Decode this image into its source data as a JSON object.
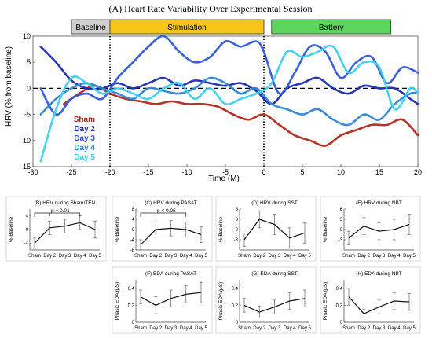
{
  "main": {
    "title": "(A) Heart Rate Variability Over Experimental Session",
    "xlabel": "Time (M)",
    "ylabel": "HRV (% from baseline)",
    "xlim": [
      -30,
      20
    ],
    "ylim": [
      -15,
      10
    ],
    "xticks": [
      -30,
      -25,
      -20,
      -15,
      -10,
      -5,
      0,
      5,
      10,
      15,
      20
    ],
    "yticks": [
      -15,
      -10,
      -5,
      0,
      5,
      10
    ],
    "phases": [
      {
        "label": "Baseline",
        "start": -25,
        "end": -20,
        "color": "#cfcfcf"
      },
      {
        "label": "Stimulation",
        "start": -20,
        "end": 0,
        "color": "#f5c518"
      },
      {
        "label": "Battery",
        "start": 1,
        "end": 16.5,
        "color": "#5cd65c"
      }
    ],
    "vlines": [
      -20,
      0
    ],
    "hline": 0,
    "legend_placement": "lower-left",
    "series": [
      {
        "name": "Sham",
        "color": "#b02a1a",
        "x": [
          -26,
          -24,
          -22,
          -20,
          -18,
          -16,
          -14,
          -12,
          -10,
          -8,
          -6,
          -4,
          -2,
          0,
          2,
          4,
          6,
          8,
          10,
          12,
          14,
          16,
          18,
          20
        ],
        "y": [
          -3,
          -1,
          0.5,
          -1,
          -2,
          -2.5,
          -3,
          -2.5,
          -3,
          -3,
          -3.5,
          -5,
          -6,
          -5,
          -7,
          -9,
          -10,
          -11,
          -9,
          -8,
          -7,
          -7,
          -6,
          -9
        ]
      },
      {
        "name": "Day 2",
        "color": "#1a2bb0",
        "x": [
          -29,
          -27,
          -25,
          -23,
          -21,
          -19,
          -17,
          -15,
          -13,
          -11,
          -9,
          -7,
          -5,
          -3,
          -1,
          1,
          3,
          5,
          7,
          9,
          11,
          13,
          15,
          17,
          19,
          20
        ],
        "y": [
          8,
          5,
          1.5,
          0,
          0,
          1,
          0,
          1,
          2,
          0.5,
          1.5,
          1,
          0.5,
          1,
          -0.5,
          -3,
          0,
          1,
          2,
          0,
          -1,
          0.5,
          0,
          0,
          -2,
          -3
        ]
      },
      {
        "name": "Day 3",
        "color": "#2f57d8",
        "x": [
          -29,
          -27,
          -25,
          -23,
          -21,
          -19,
          -17,
          -15,
          -13,
          -11,
          -9,
          -7,
          -5,
          -3,
          -1,
          0,
          2,
          4,
          6,
          8,
          10,
          12,
          14,
          16,
          18,
          20
        ],
        "y": [
          0,
          -5,
          -2,
          -1,
          -2,
          2,
          5,
          8,
          10,
          7,
          5,
          6,
          9,
          8,
          9,
          7,
          -1,
          3,
          8,
          7,
          2,
          5,
          6,
          1,
          4,
          3
        ]
      },
      {
        "name": "Day 4",
        "color": "#2e86d8",
        "x": [
          -29,
          -27,
          -25,
          -23,
          -21,
          -19,
          -17,
          -15,
          -13,
          -11,
          -9,
          -7,
          -5,
          -3,
          -1,
          1,
          3,
          5,
          7,
          9,
          11,
          13,
          15,
          17,
          19,
          20
        ],
        "y": [
          -5,
          -2,
          0,
          1,
          0,
          -1,
          -2,
          0,
          -0.5,
          -1,
          0,
          2,
          1,
          -1,
          0,
          -3,
          -4,
          -5,
          -4,
          -6,
          -7,
          -5,
          -6,
          -3,
          -1,
          -1
        ]
      },
      {
        "name": "Day 5",
        "color": "#3ad0ee",
        "x": [
          -29,
          -27,
          -25,
          -23,
          -21,
          -19,
          -17,
          -15,
          -13,
          -11,
          -9,
          -7,
          -5,
          -3,
          -1,
          1,
          3,
          5,
          7,
          9,
          11,
          13,
          15,
          17,
          19,
          20
        ],
        "y": [
          -14,
          -4,
          2,
          1,
          -1,
          0,
          -1,
          -2,
          0,
          1,
          -2,
          0,
          -3,
          -2,
          -1,
          1,
          7,
          6,
          7,
          8,
          3,
          5,
          4,
          -4,
          0,
          -1
        ]
      }
    ]
  },
  "panels": [
    {
      "title": "(B) HRV during Sham/TEN",
      "ylabel": "% Baseline",
      "ylim": [
        -6,
        6
      ],
      "yticks": [
        -4,
        0,
        4
      ],
      "categories": [
        "Sham",
        "Day 2",
        "Day 3",
        "Day 4",
        "Day 5"
      ],
      "values": [
        -4,
        0.5,
        1,
        2,
        0
      ],
      "errors": [
        1.5,
        2,
        2,
        2,
        2.5
      ],
      "annotation": "p = 0.01"
    },
    {
      "title": "(C) HRV during PASAT",
      "ylabel": "% Baseline",
      "ylim": [
        -8,
        8
      ],
      "yticks": [
        -8,
        -4,
        0,
        4,
        8
      ],
      "categories": [
        "Sham",
        "Day 2",
        "Day 3",
        "Day 4",
        "Day 5"
      ],
      "values": [
        -6,
        0,
        0.5,
        0,
        -2
      ],
      "errors": [
        2,
        3,
        3,
        3,
        3
      ],
      "annotation": "p < 0.05"
    },
    {
      "title": "(D) HRV during SST",
      "ylabel": "% Baseline",
      "ylim": [
        -6,
        6
      ],
      "yticks": [
        -3,
        0,
        3,
        6
      ],
      "categories": [
        "Sham",
        "Day 2",
        "Day 3",
        "Day 4",
        "Day 5"
      ],
      "values": [
        -3,
        3,
        1.5,
        -2.5,
        -1
      ],
      "errors": [
        2,
        2.5,
        3,
        3,
        3
      ],
      "annotation": ""
    },
    {
      "title": "(E) HRV during NBT",
      "ylabel": "% Baseline",
      "ylim": [
        -6,
        6
      ],
      "yticks": [
        -3,
        0,
        3,
        6
      ],
      "categories": [
        "Sham",
        "Day 2",
        "Day 3",
        "Day 4",
        "Day 5"
      ],
      "values": [
        -2.5,
        1,
        -0.5,
        0,
        1.5
      ],
      "errors": [
        2,
        2.5,
        2.5,
        3,
        3
      ],
      "annotation": ""
    },
    {
      "title": "(F) EDA during PASAT",
      "ylabel": "Phasic EDA (μS)",
      "ylim": [
        0,
        0.5
      ],
      "yticks": [
        0,
        0.2,
        0.4
      ],
      "categories": [
        "Sham",
        "Day 2",
        "Day 3",
        "Day 4",
        "Day 5"
      ],
      "values": [
        0.3,
        0.2,
        0.28,
        0.33,
        0.35
      ],
      "errors": [
        0.08,
        0.1,
        0.1,
        0.1,
        0.12
      ],
      "annotation": ""
    },
    {
      "title": "(G) EDA during SST",
      "ylabel": "Phasic EDA (μS)",
      "ylim": [
        0,
        0.5
      ],
      "yticks": [
        0,
        0.2,
        0.4
      ],
      "categories": [
        "Sham",
        "Day 2",
        "Day 3",
        "Day 4",
        "Day 5"
      ],
      "values": [
        0.2,
        0.12,
        0.18,
        0.25,
        0.28
      ],
      "errors": [
        0.08,
        0.07,
        0.08,
        0.1,
        0.1
      ],
      "annotation": ""
    },
    {
      "title": "(H) EDA during NBT",
      "ylabel": "Phasic EDA (μS)",
      "ylim": [
        0,
        0.5
      ],
      "yticks": [
        0,
        0.2,
        0.4
      ],
      "categories": [
        "Sham",
        "Day 2",
        "Day 3",
        "Day 4",
        "Day 5"
      ],
      "values": [
        0.3,
        0.1,
        0.18,
        0.25,
        0.24
      ],
      "errors": [
        0.1,
        0.05,
        0.08,
        0.1,
        0.1
      ],
      "annotation": ""
    }
  ],
  "chart_data": [
    {
      "type": "line",
      "title": "(A) Heart Rate Variability Over Experimental Session",
      "xlabel": "Time (M)",
      "ylabel": "HRV (% from baseline)",
      "xlim": [
        -30,
        20
      ],
      "ylim": [
        -15,
        10
      ],
      "grid": false,
      "legend": "lower-left",
      "series_names": [
        "Sham",
        "Day 2",
        "Day 3",
        "Day 4",
        "Day 5"
      ]
    },
    {
      "type": "line",
      "title": "(B) HRV during Sham/TEN",
      "ylabel": "% Baseline",
      "categories": [
        "Sham",
        "Day 2",
        "Day 3",
        "Day 4",
        "Day 5"
      ],
      "values": [
        -4,
        0.5,
        1,
        2,
        0
      ]
    },
    {
      "type": "line",
      "title": "(C) HRV during PASAT",
      "ylabel": "% Baseline",
      "categories": [
        "Sham",
        "Day 2",
        "Day 3",
        "Day 4",
        "Day 5"
      ],
      "values": [
        -6,
        0,
        0.5,
        0,
        -2
      ]
    },
    {
      "type": "line",
      "title": "(D) HRV during SST",
      "ylabel": "% Baseline",
      "categories": [
        "Sham",
        "Day 2",
        "Day 3",
        "Day 4",
        "Day 5"
      ],
      "values": [
        -3,
        3,
        1.5,
        -2.5,
        -1
      ]
    },
    {
      "type": "line",
      "title": "(E) HRV during NBT",
      "ylabel": "% Baseline",
      "categories": [
        "Sham",
        "Day 2",
        "Day 3",
        "Day 4",
        "Day 5"
      ],
      "values": [
        -2.5,
        1,
        -0.5,
        0,
        1.5
      ]
    },
    {
      "type": "line",
      "title": "(F) EDA during PASAT",
      "ylabel": "Phasic EDA (μS)",
      "categories": [
        "Sham",
        "Day 2",
        "Day 3",
        "Day 4",
        "Day 5"
      ],
      "values": [
        0.3,
        0.2,
        0.28,
        0.33,
        0.35
      ]
    },
    {
      "type": "line",
      "title": "(G) EDA during SST",
      "ylabel": "Phasic EDA (μS)",
      "categories": [
        "Sham",
        "Day 2",
        "Day 3",
        "Day 4",
        "Day 5"
      ],
      "values": [
        0.2,
        0.12,
        0.18,
        0.25,
        0.28
      ]
    },
    {
      "type": "line",
      "title": "(H) EDA during NBT",
      "ylabel": "Phasic EDA (μS)",
      "categories": [
        "Sham",
        "Day 2",
        "Day 3",
        "Day 4",
        "Day 5"
      ],
      "values": [
        0.3,
        0.1,
        0.18,
        0.25,
        0.24
      ]
    }
  ]
}
